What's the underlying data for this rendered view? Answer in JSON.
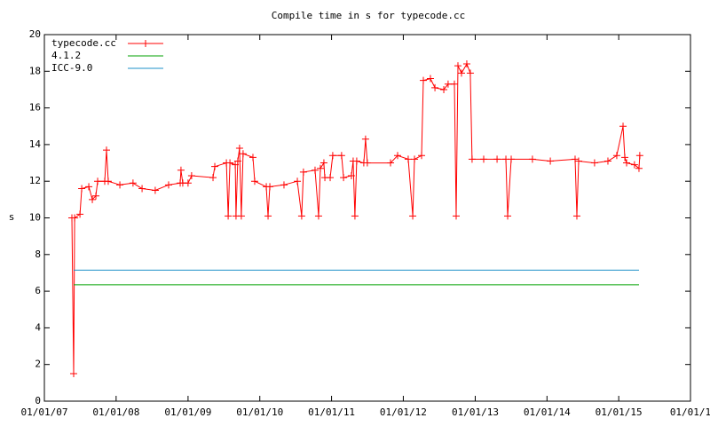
{
  "chart_data": {
    "type": "line",
    "title": "Compile time in s for typecode.cc",
    "y_label": "s",
    "xlim": [
      "2007-01-01",
      "2016-01-01"
    ],
    "xticks": [
      {
        "value": "2007-01-01",
        "label": "01/01/07"
      },
      {
        "value": "2008-01-01",
        "label": "01/01/08"
      },
      {
        "value": "2009-01-01",
        "label": "01/01/09"
      },
      {
        "value": "2010-01-01",
        "label": "01/01/10"
      },
      {
        "value": "2011-01-01",
        "label": "01/01/11"
      },
      {
        "value": "2012-01-01",
        "label": "01/01/12"
      },
      {
        "value": "2013-01-01",
        "label": "01/01/13"
      },
      {
        "value": "2014-01-01",
        "label": "01/01/14"
      },
      {
        "value": "2015-01-01",
        "label": "01/01/15"
      },
      {
        "value": "2016-01-01",
        "label": "01/01/1"
      }
    ],
    "ylim": [
      0,
      20
    ],
    "yticks": [
      0,
      2,
      4,
      6,
      8,
      10,
      12,
      14,
      16,
      18,
      20
    ],
    "legend": "top left",
    "series": [
      {
        "name": "typecode.cc",
        "color": "#ff0000",
        "markers": true,
        "x": [
          "2007-05-21",
          "2007-05-30",
          "2007-06-04",
          "2007-07-01",
          "2007-07-10",
          "2007-08-15",
          "2007-09-02",
          "2007-09-20",
          "2007-09-29",
          "2007-11-04",
          "2007-11-13",
          "2007-11-22",
          "2008-01-20",
          "2008-03-27",
          "2008-05-12",
          "2008-07-18",
          "2008-09-24",
          "2008-11-22",
          "2008-11-26",
          "2008-12-05",
          "2009-01-01",
          "2009-01-19",
          "2009-05-08",
          "2009-05-17",
          "2009-07-15",
          "2009-07-24",
          "2009-08-02",
          "2009-08-29",
          "2009-09-02",
          "2009-09-11",
          "2009-09-20",
          "2009-09-29",
          "2009-10-08",
          "2009-11-27",
          "2009-12-06",
          "2010-02-03",
          "2010-02-12",
          "2010-02-21",
          "2010-05-04",
          "2010-07-11",
          "2010-08-02",
          "2010-08-11",
          "2010-10-09",
          "2010-10-27",
          "2010-11-05",
          "2010-11-23",
          "2010-11-28",
          "2010-12-25",
          "2011-01-07",
          "2011-02-21",
          "2011-03-03",
          "2011-04-12",
          "2011-04-21",
          "2011-04-30",
          "2011-05-09",
          "2011-06-14",
          "2011-06-23",
          "2011-07-02",
          "2011-10-28",
          "2011-12-03",
          "2012-01-26",
          "2012-02-18",
          "2012-02-27",
          "2012-04-03",
          "2012-04-12",
          "2012-05-18",
          "2012-06-10",
          "2012-07-25",
          "2012-08-16",
          "2012-09-17",
          "2012-09-26",
          "2012-10-05",
          "2012-10-23",
          "2012-11-19",
          "2012-12-07",
          "2012-12-16",
          "2013-02-13",
          "2013-04-22",
          "2013-06-06",
          "2013-06-15",
          "2013-07-03",
          "2013-10-19",
          "2014-01-18",
          "2014-05-24",
          "2014-06-02",
          "2014-06-11",
          "2014-08-31",
          "2014-11-07",
          "2014-12-22",
          "2015-01-23",
          "2015-02-01",
          "2015-02-10",
          "2015-03-22",
          "2015-04-14",
          "2015-04-18"
        ],
        "values": [
          10.0,
          1.5,
          10.0,
          10.2,
          11.6,
          11.7,
          11.0,
          11.2,
          12.0,
          12.0,
          13.7,
          12.0,
          11.8,
          11.9,
          11.6,
          11.5,
          11.8,
          11.9,
          12.6,
          11.9,
          11.9,
          12.3,
          12.2,
          12.8,
          13.0,
          10.1,
          13.0,
          12.9,
          10.1,
          13.1,
          13.8,
          10.1,
          13.5,
          13.3,
          12.0,
          11.7,
          10.1,
          11.7,
          11.8,
          12.0,
          10.1,
          12.5,
          12.6,
          10.1,
          12.7,
          13.0,
          12.2,
          12.2,
          13.4,
          13.4,
          12.2,
          12.3,
          13.1,
          10.1,
          13.1,
          13.0,
          14.3,
          13.0,
          13.0,
          13.4,
          13.2,
          10.1,
          13.2,
          13.4,
          17.5,
          17.6,
          17.1,
          17.0,
          17.3,
          17.3,
          10.1,
          18.3,
          17.9,
          18.4,
          17.9,
          13.2,
          13.2,
          13.2,
          13.2,
          10.1,
          13.2,
          13.2,
          13.1,
          13.2,
          10.1,
          13.1,
          13.0,
          13.1,
          13.4,
          15.0,
          13.3,
          13.0,
          12.9,
          12.7,
          13.4
        ]
      },
      {
        "name": "4.1.2",
        "color": "#00a000",
        "markers": false,
        "x": [
          "2007-05-30",
          "2015-04-14"
        ],
        "values": [
          6.35,
          6.35
        ]
      },
      {
        "name": "ICC-9.0",
        "color": "#1e90c8",
        "markers": false,
        "x": [
          "2007-05-30",
          "2015-04-14"
        ],
        "values": [
          7.15,
          7.15
        ]
      }
    ]
  }
}
